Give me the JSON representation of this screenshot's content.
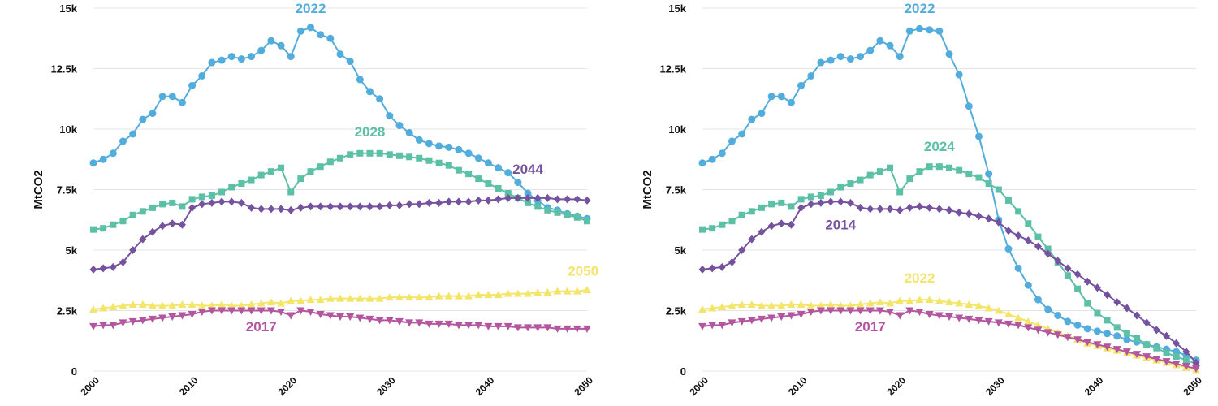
{
  "colors": {
    "blue": "#53addc",
    "teal": "#5cc0a6",
    "purple": "#74529e",
    "yellow": "#f3e46a",
    "pink": "#b3559f"
  },
  "chart_data": [
    {
      "type": "line",
      "ylabel": "MtCO2",
      "xlim": [
        2000,
        2050
      ],
      "ylim": [
        0,
        15000
      ],
      "x_ticks": [
        "2000",
        "2010",
        "2020",
        "2030",
        "2040",
        "2050"
      ],
      "y_ticks": [
        "0",
        "2.5k",
        "5k",
        "7.5k",
        "10k",
        "12.5k",
        "15k"
      ],
      "y_tick_values": [
        0,
        2500,
        5000,
        7500,
        10000,
        12500,
        15000
      ],
      "grid": true,
      "x": [
        2000,
        2001,
        2002,
        2003,
        2004,
        2005,
        2006,
        2007,
        2008,
        2009,
        2010,
        2011,
        2012,
        2013,
        2014,
        2015,
        2016,
        2017,
        2018,
        2019,
        2020,
        2021,
        2022,
        2023,
        2024,
        2025,
        2026,
        2027,
        2028,
        2029,
        2030,
        2031,
        2032,
        2033,
        2034,
        2035,
        2036,
        2037,
        2038,
        2039,
        2040,
        2041,
        2042,
        2043,
        2044,
        2045,
        2046,
        2047,
        2048,
        2049,
        2050
      ],
      "series": [
        {
          "name": "2022",
          "color_key": "blue",
          "marker": "circle",
          "label_at": [
            2022,
            14800
          ],
          "values": [
            8600,
            8750,
            9000,
            9500,
            9800,
            10400,
            10650,
            11350,
            11350,
            11100,
            11800,
            12200,
            12750,
            12850,
            13000,
            12900,
            13000,
            13250,
            13650,
            13450,
            13000,
            14050,
            14200,
            13900,
            13750,
            13100,
            12800,
            12050,
            11550,
            11250,
            10550,
            10150,
            9850,
            9550,
            9400,
            9300,
            9250,
            9150,
            9000,
            8800,
            8600,
            8400,
            8200,
            7800,
            7350,
            7050,
            6750,
            6650,
            6500,
            6400,
            6300
          ]
        },
        {
          "name": "2028",
          "color_key": "teal",
          "marker": "square",
          "label_at": [
            2028,
            9700
          ],
          "values": [
            5850,
            5900,
            6050,
            6200,
            6450,
            6600,
            6750,
            6900,
            6950,
            6800,
            7100,
            7200,
            7250,
            7400,
            7600,
            7750,
            7900,
            8100,
            8250,
            8400,
            7400,
            7950,
            8250,
            8450,
            8650,
            8800,
            8950,
            9000,
            9000,
            9000,
            8950,
            8900,
            8850,
            8800,
            8700,
            8600,
            8500,
            8300,
            8150,
            7950,
            7750,
            7550,
            7350,
            7150,
            6950,
            6800,
            6650,
            6550,
            6450,
            6350,
            6200
          ]
        },
        {
          "name": "2044",
          "color_key": "purple",
          "marker": "diamond",
          "label_at": [
            2044,
            8150
          ],
          "values": [
            4200,
            4250,
            4300,
            4500,
            5000,
            5450,
            5750,
            6000,
            6100,
            6050,
            6750,
            6900,
            6950,
            7000,
            7000,
            6950,
            6750,
            6700,
            6700,
            6700,
            6650,
            6750,
            6800,
            6800,
            6800,
            6800,
            6800,
            6800,
            6800,
            6800,
            6850,
            6850,
            6900,
            6900,
            6950,
            6950,
            7000,
            7000,
            7000,
            7050,
            7050,
            7100,
            7150,
            7150,
            7150,
            7150,
            7150,
            7100,
            7100,
            7100,
            7050
          ]
        },
        {
          "name": "2050",
          "color_key": "yellow",
          "marker": "triangle-up",
          "label_at": [
            2049.6,
            3950
          ],
          "values": [
            2550,
            2600,
            2650,
            2700,
            2750,
            2750,
            2700,
            2700,
            2700,
            2750,
            2750,
            2700,
            2700,
            2750,
            2700,
            2700,
            2750,
            2800,
            2850,
            2800,
            2900,
            2900,
            2950,
            2950,
            3000,
            3000,
            3000,
            3000,
            3000,
            3000,
            3050,
            3050,
            3050,
            3050,
            3050,
            3100,
            3100,
            3100,
            3100,
            3150,
            3150,
            3150,
            3200,
            3200,
            3200,
            3250,
            3250,
            3300,
            3300,
            3300,
            3350
          ]
        },
        {
          "name": "2017",
          "color_key": "pink",
          "marker": "triangle-down",
          "label_at": [
            2017,
            1650
          ],
          "values": [
            1850,
            1900,
            1900,
            2000,
            2050,
            2100,
            2150,
            2200,
            2250,
            2300,
            2350,
            2450,
            2500,
            2500,
            2500,
            2500,
            2500,
            2500,
            2500,
            2450,
            2300,
            2500,
            2450,
            2350,
            2300,
            2250,
            2250,
            2200,
            2150,
            2100,
            2100,
            2050,
            2000,
            2000,
            1950,
            1950,
            1950,
            1900,
            1900,
            1900,
            1850,
            1850,
            1850,
            1800,
            1800,
            1800,
            1800,
            1750,
            1750,
            1750,
            1750
          ]
        }
      ]
    },
    {
      "type": "line",
      "ylabel": "MtCO2",
      "xlim": [
        2000,
        2050
      ],
      "ylim": [
        0,
        15000
      ],
      "x_ticks": [
        "2000",
        "2010",
        "2020",
        "2030",
        "2040",
        "2050"
      ],
      "y_ticks": [
        "0",
        "2.5k",
        "5k",
        "7.5k",
        "10k",
        "12.5k",
        "15k"
      ],
      "y_tick_values": [
        0,
        2500,
        5000,
        7500,
        10000,
        12500,
        15000
      ],
      "grid": true,
      "x": [
        2000,
        2001,
        2002,
        2003,
        2004,
        2005,
        2006,
        2007,
        2008,
        2009,
        2010,
        2011,
        2012,
        2013,
        2014,
        2015,
        2016,
        2017,
        2018,
        2019,
        2020,
        2021,
        2022,
        2023,
        2024,
        2025,
        2026,
        2027,
        2028,
        2029,
        2030,
        2031,
        2032,
        2033,
        2034,
        2035,
        2036,
        2037,
        2038,
        2039,
        2040,
        2041,
        2042,
        2043,
        2044,
        2045,
        2046,
        2047,
        2048,
        2049,
        2050
      ],
      "series": [
        {
          "name": "2022",
          "color_key": "blue",
          "marker": "circle",
          "label_at": [
            2022,
            14800
          ],
          "values": [
            8600,
            8750,
            9000,
            9500,
            9800,
            10400,
            10650,
            11350,
            11350,
            11100,
            11800,
            12200,
            12750,
            12850,
            13000,
            12900,
            13000,
            13250,
            13650,
            13450,
            13000,
            14050,
            14150,
            14100,
            14050,
            13100,
            12250,
            10950,
            9700,
            8150,
            6250,
            5050,
            4250,
            3550,
            2950,
            2550,
            2300,
            2050,
            1900,
            1750,
            1650,
            1550,
            1450,
            1300,
            1200,
            1100,
            1000,
            900,
            800,
            650,
            450
          ]
        },
        {
          "name": "2024",
          "color_key": "teal",
          "marker": "square",
          "label_at": [
            2024,
            9100
          ],
          "values": [
            5850,
            5900,
            6050,
            6200,
            6450,
            6600,
            6750,
            6900,
            6950,
            6800,
            7100,
            7200,
            7250,
            7400,
            7600,
            7750,
            7900,
            8100,
            8250,
            8400,
            7400,
            7950,
            8250,
            8450,
            8450,
            8400,
            8300,
            8150,
            8000,
            7750,
            7500,
            7050,
            6600,
            6100,
            5550,
            5050,
            4500,
            3950,
            3400,
            2800,
            2400,
            2100,
            1800,
            1550,
            1350,
            1100,
            950,
            750,
            600,
            450,
            300
          ]
        },
        {
          "name": "2014",
          "color_key": "purple",
          "marker": "diamond",
          "label_at": [
            2014,
            5850
          ],
          "values": [
            4200,
            4250,
            4300,
            4500,
            5000,
            5450,
            5750,
            6000,
            6100,
            6050,
            6750,
            6900,
            6950,
            7000,
            7000,
            6950,
            6750,
            6700,
            6700,
            6700,
            6650,
            6750,
            6800,
            6750,
            6700,
            6650,
            6550,
            6500,
            6400,
            6300,
            6150,
            5800,
            5600,
            5400,
            5150,
            4850,
            4550,
            4250,
            4000,
            3700,
            3450,
            3150,
            2850,
            2600,
            2300,
            2000,
            1700,
            1450,
            1150,
            800,
            350
          ]
        },
        {
          "name": "2022",
          "color_key": "yellow",
          "marker": "triangle-up",
          "label_at": [
            2022,
            3650
          ],
          "values": [
            2550,
            2600,
            2650,
            2700,
            2750,
            2750,
            2700,
            2700,
            2700,
            2750,
            2750,
            2700,
            2700,
            2750,
            2700,
            2700,
            2750,
            2800,
            2850,
            2800,
            2900,
            2900,
            2950,
            2950,
            2900,
            2850,
            2800,
            2750,
            2700,
            2600,
            2500,
            2350,
            2200,
            2050,
            1900,
            1750,
            1600,
            1450,
            1300,
            1150,
            1050,
            950,
            850,
            750,
            650,
            550,
            450,
            350,
            250,
            150,
            50
          ]
        },
        {
          "name": "2017",
          "color_key": "pink",
          "marker": "triangle-down",
          "label_at": [
            2017,
            1650
          ],
          "values": [
            1850,
            1900,
            1900,
            2000,
            2050,
            2100,
            2150,
            2200,
            2250,
            2300,
            2350,
            2450,
            2500,
            2500,
            2500,
            2500,
            2500,
            2500,
            2500,
            2450,
            2300,
            2500,
            2450,
            2350,
            2300,
            2250,
            2200,
            2150,
            2100,
            2050,
            2000,
            1950,
            1900,
            1800,
            1700,
            1600,
            1500,
            1400,
            1300,
            1200,
            1100,
            1000,
            900,
            800,
            700,
            600,
            500,
            400,
            300,
            200,
            100
          ]
        }
      ]
    }
  ]
}
